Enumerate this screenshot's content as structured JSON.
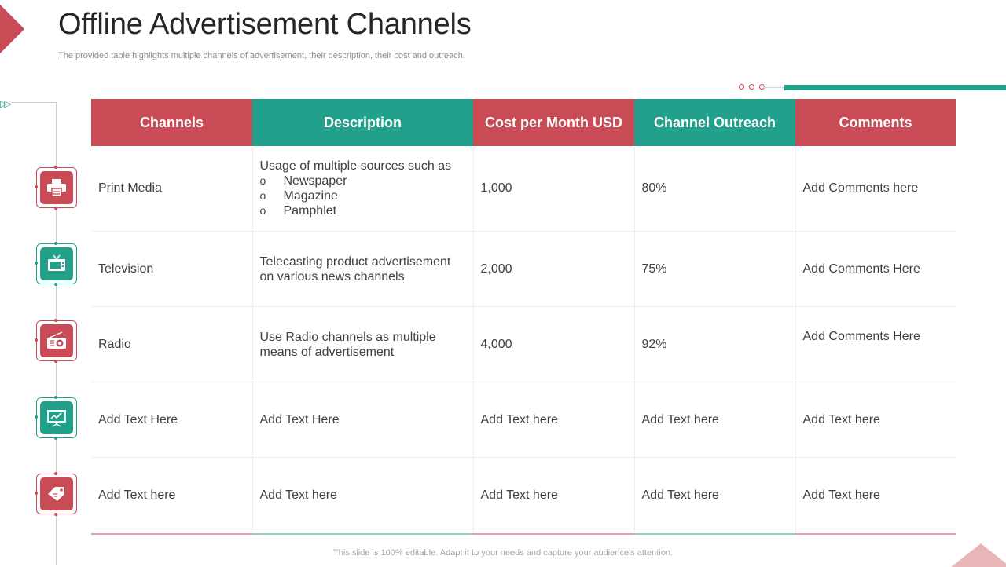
{
  "title": "Offline Advertisement Channels",
  "subtitle": "The provided table highlights multiple channels of advertisement, their description, their cost and outreach.",
  "table": {
    "headers": [
      "Channels",
      "Description",
      "Cost per Month USD",
      "Channel Outreach",
      "Comments"
    ],
    "rows": [
      {
        "channel": "Print Media",
        "description_intro": "Usage of multiple sources such as",
        "description_bullets": [
          "Newspaper",
          "Magazine",
          "Pamphlet"
        ],
        "cost": "1,000",
        "outreach": "80%",
        "comments": "Add Comments here",
        "icon": "printer-icon"
      },
      {
        "channel": "Television",
        "description": "Telecasting product advertisement on various news channels",
        "cost": "2,000",
        "outreach": "75%",
        "comments": "Add Comments Here",
        "icon": "television-icon"
      },
      {
        "channel": "Radio",
        "description": "Use Radio channels as multiple means of advertisement",
        "cost": "4,000",
        "outreach": "92%",
        "comments": "Add Comments Here",
        "icon": "radio-icon"
      },
      {
        "channel": "Add Text Here",
        "description": "Add Text Here",
        "cost": "Add Text here",
        "outreach": "Add Text here",
        "comments": "Add Text here",
        "icon": "presentation-board-icon"
      },
      {
        "channel": "Add Text here",
        "description": "Add Text here",
        "cost": "Add Text here",
        "outreach": "Add Text here",
        "comments": "Add Text here",
        "icon": "price-tag-icon"
      }
    ]
  },
  "footer": "This slide is 100% editable. Adapt it to your needs and capture your audience's attention.",
  "colors": {
    "accent_red": "#c94b55",
    "accent_teal": "#22a08b"
  }
}
